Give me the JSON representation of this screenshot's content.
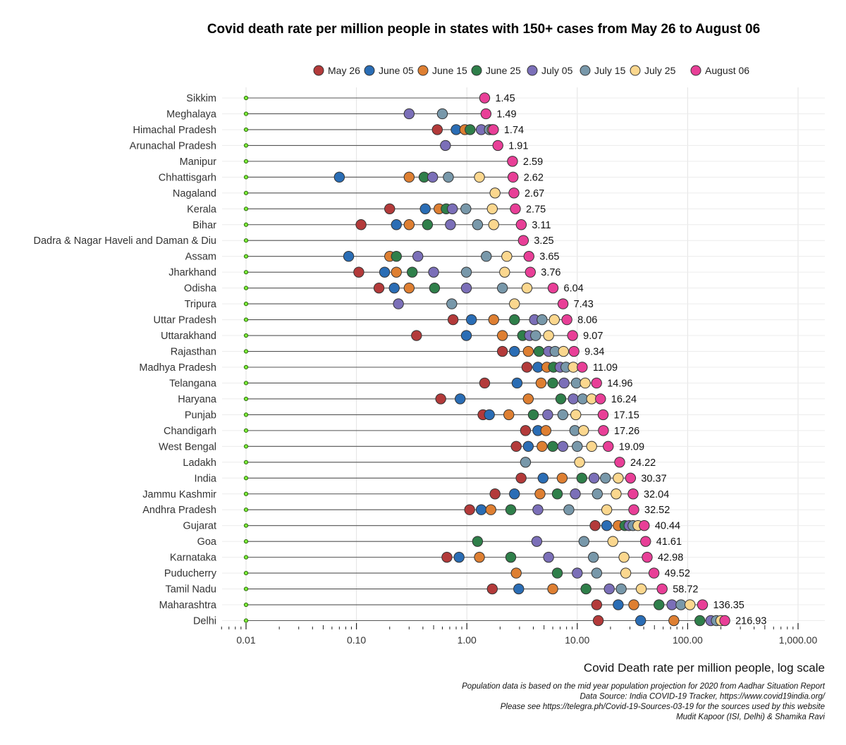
{
  "chart_data": {
    "type": "scatter",
    "title": "Covid death rate per million people in states with 150+ cases from May 26 to August 06",
    "xlabel": "Covid Death rate per million people, log scale",
    "x_scale": "log10",
    "xlim": [
      0.01,
      1000
    ],
    "x_tick_labels": [
      "0.01",
      "0.10",
      "1.00",
      "10.00",
      "100.00",
      "1,000.00"
    ],
    "x_tick_values": [
      0.01,
      0.1,
      1,
      10,
      100,
      1000
    ],
    "legend_position": "top",
    "baseline_value": 0.01,
    "series": [
      {
        "name": "May 26",
        "color": "#b33a3a"
      },
      {
        "name": "June 05",
        "color": "#2a6db5"
      },
      {
        "name": "June 15",
        "color": "#de7f32"
      },
      {
        "name": "June 25",
        "color": "#2f7f4a"
      },
      {
        "name": "July 05",
        "color": "#7b6fb8"
      },
      {
        "name": "July 15",
        "color": "#7898aa"
      },
      {
        "name": "July 25",
        "color": "#fbd78e"
      },
      {
        "name": "August 06",
        "color": "#e83f97"
      }
    ],
    "states": [
      {
        "name": "Sikkim",
        "values": [
          null,
          null,
          null,
          null,
          null,
          null,
          null,
          1.45
        ],
        "label": "1.45"
      },
      {
        "name": "Meghalaya",
        "values": [
          null,
          null,
          null,
          null,
          0.3,
          0.6,
          null,
          1.49
        ],
        "label": "1.49"
      },
      {
        "name": "Himachal Pradesh",
        "values": [
          0.54,
          0.8,
          0.96,
          1.07,
          1.35,
          1.6,
          1.7,
          1.74
        ],
        "label": "1.74"
      },
      {
        "name": "Arunachal Pradesh",
        "values": [
          null,
          null,
          null,
          null,
          0.64,
          null,
          null,
          1.91
        ],
        "label": "1.91"
      },
      {
        "name": "Manipur",
        "values": [
          null,
          null,
          null,
          null,
          null,
          null,
          null,
          2.59
        ],
        "label": "2.59"
      },
      {
        "name": "Chhattisgarh",
        "values": [
          null,
          0.07,
          0.3,
          0.41,
          0.49,
          0.68,
          1.3,
          2.62
        ],
        "label": "2.62"
      },
      {
        "name": "Nagaland",
        "values": [
          null,
          null,
          null,
          null,
          null,
          null,
          1.8,
          2.67
        ],
        "label": "2.67"
      },
      {
        "name": "Kerala",
        "values": [
          0.2,
          0.42,
          0.56,
          0.65,
          0.74,
          0.98,
          1.7,
          2.75
        ],
        "label": "2.75"
      },
      {
        "name": "Bihar",
        "values": [
          0.11,
          0.23,
          0.3,
          0.44,
          0.71,
          1.25,
          1.75,
          3.11
        ],
        "label": "3.11"
      },
      {
        "name": "Dadra & Nagar Haveli and Daman & Diu",
        "values": [
          null,
          null,
          null,
          null,
          null,
          null,
          null,
          3.25
        ],
        "label": "3.25"
      },
      {
        "name": "Assam",
        "values": [
          null,
          0.085,
          0.2,
          0.23,
          0.36,
          1.5,
          2.3,
          3.65
        ],
        "label": "3.65"
      },
      {
        "name": "Jharkhand",
        "values": [
          0.105,
          0.18,
          0.23,
          0.32,
          0.5,
          0.99,
          2.2,
          3.76
        ],
        "label": "3.76"
      },
      {
        "name": "Odisha",
        "values": [
          0.16,
          0.22,
          0.3,
          0.51,
          0.99,
          2.1,
          3.5,
          6.04
        ],
        "label": "6.04"
      },
      {
        "name": "Tripura",
        "values": [
          null,
          null,
          null,
          null,
          0.24,
          0.73,
          2.7,
          7.43
        ],
        "label": "7.43"
      },
      {
        "name": "Uttar Pradesh",
        "values": [
          0.75,
          1.1,
          1.75,
          2.7,
          4.1,
          4.8,
          6.2,
          8.06
        ],
        "label": "8.06"
      },
      {
        "name": "Uttarakhand",
        "values": [
          0.35,
          0.99,
          2.1,
          3.2,
          3.7,
          4.2,
          5.5,
          9.07
        ],
        "label": "9.07"
      },
      {
        "name": "Rajasthan",
        "values": [
          2.1,
          2.7,
          3.6,
          4.5,
          5.5,
          6.3,
          7.5,
          9.34
        ],
        "label": "9.34"
      },
      {
        "name": "Madhya Pradesh",
        "values": [
          3.5,
          4.4,
          5.3,
          6.1,
          7.0,
          7.9,
          9.2,
          11.09
        ],
        "label": "11.09"
      },
      {
        "name": "Telangana",
        "values": [
          1.45,
          2.85,
          4.7,
          6.0,
          7.6,
          9.8,
          11.8,
          14.96
        ],
        "label": "14.96"
      },
      {
        "name": "Haryana",
        "values": [
          0.58,
          0.87,
          3.6,
          7.1,
          9.2,
          11.2,
          13.5,
          16.24
        ],
        "label": "16.24"
      },
      {
        "name": "Punjab",
        "values": [
          1.4,
          1.6,
          2.4,
          4.0,
          5.4,
          7.4,
          9.7,
          17.15
        ],
        "label": "17.15"
      },
      {
        "name": "Chandigarh",
        "values": [
          3.4,
          4.4,
          5.2,
          null,
          null,
          9.5,
          11.4,
          17.26
        ],
        "label": "17.26"
      },
      {
        "name": "West Bengal",
        "values": [
          2.8,
          3.6,
          4.8,
          6.0,
          7.4,
          10.0,
          13.5,
          19.09
        ],
        "label": "19.09"
      },
      {
        "name": "Ladakh",
        "values": [
          null,
          null,
          null,
          null,
          null,
          3.4,
          10.5,
          24.22
        ],
        "label": "24.22"
      },
      {
        "name": "India",
        "values": [
          3.1,
          4.9,
          7.3,
          11.0,
          14.2,
          18.0,
          23.5,
          30.37
        ],
        "label": "30.37"
      },
      {
        "name": "Jammu Kashmir",
        "values": [
          1.8,
          2.7,
          4.6,
          6.6,
          9.6,
          15.2,
          22.5,
          32.04
        ],
        "label": "32.04"
      },
      {
        "name": "Andhra Pradesh",
        "values": [
          1.06,
          1.35,
          1.65,
          2.5,
          4.4,
          8.4,
          18.5,
          32.52
        ],
        "label": "32.52"
      },
      {
        "name": "Gujarat",
        "values": [
          14.5,
          18.5,
          23.5,
          27.0,
          29.5,
          32.0,
          35.5,
          40.44
        ],
        "label": "40.44"
      },
      {
        "name": "Goa",
        "values": [
          null,
          null,
          null,
          1.25,
          4.3,
          11.5,
          21.0,
          41.61
        ],
        "label": "41.61"
      },
      {
        "name": "Karnataka",
        "values": [
          0.66,
          0.85,
          1.3,
          2.5,
          5.5,
          14.0,
          26.5,
          42.98
        ],
        "label": "42.98"
      },
      {
        "name": "Puducherry",
        "values": [
          null,
          null,
          2.8,
          6.6,
          10.0,
          15.0,
          27.5,
          49.52
        ],
        "label": "49.52"
      },
      {
        "name": "Tamil Nadu",
        "values": [
          1.7,
          2.95,
          6.0,
          12.0,
          19.5,
          25.0,
          38.0,
          58.72
        ],
        "label": "58.72"
      },
      {
        "name": "Maharashtra",
        "values": [
          15.0,
          23.5,
          32.5,
          55.0,
          72.0,
          87.0,
          105.0,
          136.35
        ],
        "label": "136.35"
      },
      {
        "name": "Delhi",
        "values": [
          15.5,
          37.5,
          75.0,
          129.0,
          162.0,
          182.0,
          200.0,
          216.93
        ],
        "label": "216.93"
      }
    ]
  },
  "captions": [
    "Population data is based on the mid year population projection for 2020 from Aadhar Situation Report",
    "Data Source: India COVID-19 Tracker, https://www.covid19india.org/",
    "Please see https://telegra.ph/Covid-19-Sources-03-19 for the sources used by this website",
    "Mudit Kapoor (ISI, Delhi) & Shamika Ravi"
  ]
}
